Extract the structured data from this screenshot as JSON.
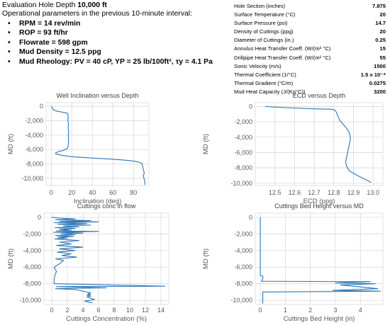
{
  "header": {
    "eval_prefix": "Evaluation Hole Depth ",
    "eval_depth": "10,000 ft",
    "subtitle": "Operational parameters in the previous 10-minute interval:",
    "bullets": [
      "RPM = 14 rev/min",
      "ROP = 93 ft/hr",
      "Flowrate = 598 gpm",
      "Mud Density = 12.5 ppg",
      "Mud Rheology: PV = 40 cP, YP = 25 lb/100ft², τy = 4.1 Pa"
    ]
  },
  "params": [
    {
      "label": "Hole Section (inches)",
      "value": "7.875"
    },
    {
      "label": "Surface Temperature (°C)",
      "value": "20"
    },
    {
      "label": "Surface Pressure (psi)",
      "value": "14.7"
    },
    {
      "label": "Density of Cuttings (ppg)",
      "value": "20"
    },
    {
      "label": "Diameter of Cuttings (in.)",
      "value": "0.25"
    },
    {
      "label": "Annulus Heat Transfer Coeff. (W/(m² °C)",
      "value": "15"
    },
    {
      "label": "Drillpipe Heat Transfer Coeff. (W/(m² °C)",
      "value": "55"
    },
    {
      "label": "Sonic Velocity (m/s)",
      "value": "1500"
    },
    {
      "label": "Thermal Coefficient (1/°C)",
      "value": "1.5 x 10⁻⁴"
    },
    {
      "label": "Thermal Gradient (°C/m)",
      "value": "0.0275"
    },
    {
      "label": "Mud Heat Capacity (J/(Kg°C))",
      "value": "3200"
    }
  ],
  "colors": {
    "series": "#2e75b6",
    "grid": "#d9d9d9",
    "text": "#595959"
  },
  "chart_data": [
    {
      "type": "line",
      "title": "Well Inclination versus Depth",
      "xlabel": "Inclination (deg)",
      "ylabel": "MD (ft)",
      "xlim": [
        -5,
        95
      ],
      "ylim": [
        -11000,
        500
      ],
      "y_reversed": false,
      "xticks": [
        0,
        20,
        40,
        60,
        80
      ],
      "xtick_labels": [
        "0",
        "20",
        "40",
        "60",
        "80"
      ],
      "yticks": [
        0,
        -2000,
        -4000,
        -6000,
        -8000,
        -10000
      ],
      "ytick_labels": [
        "0",
        "-2,000",
        "-4,000",
        "-6,000",
        "-8,000",
        "-10,000"
      ],
      "grid": true,
      "series": [
        {
          "x": [
            0.5,
            1,
            3,
            6,
            10,
            14,
            16,
            16.5,
            16.2,
            16.8,
            16.4,
            17,
            16.6,
            16.9,
            16.7,
            16.5,
            16,
            14,
            11,
            7,
            4.5,
            4.3,
            10,
            20,
            35,
            55,
            70,
            80,
            85,
            88,
            88.5,
            89,
            89.5,
            90,
            90.5,
            89.5,
            90,
            90.5,
            91,
            91,
            91
          ],
          "y": [
            0,
            -300,
            -550,
            -700,
            -800,
            -900,
            -1000,
            -1500,
            -2000,
            -2500,
            -3000,
            -3500,
            -4000,
            -4500,
            -5000,
            -5500,
            -5800,
            -6000,
            -6150,
            -6300,
            -6450,
            -6600,
            -6800,
            -7000,
            -7150,
            -7300,
            -7450,
            -7600,
            -7750,
            -7900,
            -8100,
            -8400,
            -8700,
            -9000,
            -9300,
            -9600,
            -9900,
            -10200,
            -10400,
            -10700,
            -10900
          ]
        }
      ]
    },
    {
      "type": "line",
      "title": "ECD versus Depth",
      "xlabel": "ECD (ppg)",
      "ylabel": "MD (ft)",
      "xlim": [
        12.4,
        13.05
      ],
      "ylim": [
        -10300,
        500
      ],
      "xticks": [
        12.5,
        12.6,
        12.7,
        12.8,
        12.9,
        13.0
      ],
      "xtick_labels": [
        "12.5",
        "12.6",
        "12.7",
        "12.8",
        "12.9",
        "13.0"
      ],
      "yticks": [
        0,
        -2000,
        -4000,
        -6000,
        -8000,
        -10000
      ],
      "ytick_labels": [
        "0",
        "-2,000",
        "-4,000",
        "-6,000",
        "-8,000",
        "-10,000"
      ],
      "grid": true,
      "series": [
        {
          "x": [
            12.45,
            12.55,
            12.7,
            12.78,
            12.8,
            12.81,
            12.82,
            12.83,
            12.85,
            12.87,
            12.88,
            12.885,
            12.88,
            12.875,
            12.87,
            12.865,
            12.86,
            12.865,
            12.88,
            12.92,
            12.96,
            12.99
          ],
          "y": [
            0,
            -150,
            -300,
            -350,
            -400,
            -600,
            -1200,
            -1800,
            -2400,
            -3000,
            -3500,
            -4200,
            -4800,
            -5400,
            -6000,
            -6600,
            -7200,
            -7800,
            -8400,
            -9000,
            -9500,
            -9900
          ]
        }
      ]
    },
    {
      "type": "line",
      "title": "Cuttings conc in flow",
      "xlabel": "Cuttings Concentration (%)",
      "ylabel": "MD (ft)",
      "xlim": [
        -1,
        15
      ],
      "ylim": [
        -10500,
        500
      ],
      "xticks": [
        0,
        2,
        4,
        6,
        8,
        10,
        12,
        14
      ],
      "xtick_labels": [
        "0",
        "2",
        "4",
        "6",
        "8",
        "10",
        "12",
        "14"
      ],
      "yticks": [
        0,
        -2000,
        -4000,
        -6000,
        -8000,
        -10000
      ],
      "ytick_labels": [
        "0",
        "-2,000",
        "-4,000",
        "-6,000",
        "-8,000",
        "-10,000"
      ],
      "grid": true,
      "series": [
        {
          "x": [
            0,
            1,
            3,
            0.5,
            5,
            1,
            6,
            0.3,
            4.5,
            0.8,
            5,
            1.5,
            3.5,
            0.4,
            3,
            1,
            2.5,
            0.6,
            6,
            0.2,
            4,
            1.2,
            3,
            0.5,
            2.8,
            0.8,
            2,
            0.4,
            3.5,
            1,
            2.5,
            0.6,
            4,
            1,
            3,
            0.7,
            2.5,
            1.3,
            3.2,
            0.5,
            1.5,
            1,
            0.3,
            0.6,
            0.4,
            0.3,
            0.3,
            14.5,
            0.6,
            7,
            0.5,
            3,
            3.5,
            4,
            4.5,
            5,
            4.6,
            5,
            4.5,
            5,
            4.5,
            4.8,
            5.5,
            4.2,
            5.2
          ],
          "y": [
            0,
            -100,
            -200,
            -300,
            -400,
            -500,
            -550,
            -650,
            -750,
            -850,
            -950,
            -1050,
            -1150,
            -1250,
            -1350,
            -1450,
            -1550,
            -1650,
            -1700,
            -1800,
            -1900,
            -2000,
            -2100,
            -2200,
            -2300,
            -2400,
            -2500,
            -2600,
            -2800,
            -3000,
            -3200,
            -3400,
            -3600,
            -3800,
            -4000,
            -4200,
            -4400,
            -4600,
            -4800,
            -5000,
            -5200,
            -5600,
            -6000,
            -6500,
            -7000,
            -7500,
            -8000,
            -8300,
            -8350,
            -8500,
            -8600,
            -8700,
            -8800,
            -8900,
            -9000,
            -9100,
            -9200,
            -9300,
            -9400,
            -9500,
            -9600,
            -9700,
            -9900,
            -10100,
            -10300
          ]
        }
      ]
    },
    {
      "type": "line",
      "title": "Cuttings Bed Height versus MD",
      "xlabel": "Cuttings Bed Height  (in)",
      "ylabel": "MD (ft)",
      "xlim": [
        -0.2,
        4.9
      ],
      "ylim": [
        -10500,
        500
      ],
      "xticks": [
        0,
        1,
        2,
        3,
        4
      ],
      "xtick_labels": [
        "0",
        "1",
        "2",
        "3",
        "4"
      ],
      "yticks": [
        0,
        -2000,
        -4000,
        -6000,
        -8000,
        -10000
      ],
      "ytick_labels": [
        "0",
        "-2,000",
        "-4,000",
        "-6,000",
        "-8,000",
        "-10,000"
      ],
      "grid": true,
      "series": [
        {
          "x": [
            0,
            0,
            0.1,
            0.1,
            0.05,
            4.4,
            3.0,
            4.6,
            3.2,
            4.7,
            2.9,
            4.8,
            0.1,
            0.1
          ],
          "y": [
            0,
            -7000,
            -7100,
            -7400,
            -7700,
            -7750,
            -7900,
            -8000,
            -8150,
            -8600,
            -8800,
            -8900,
            -9000,
            -10400
          ]
        }
      ]
    }
  ]
}
